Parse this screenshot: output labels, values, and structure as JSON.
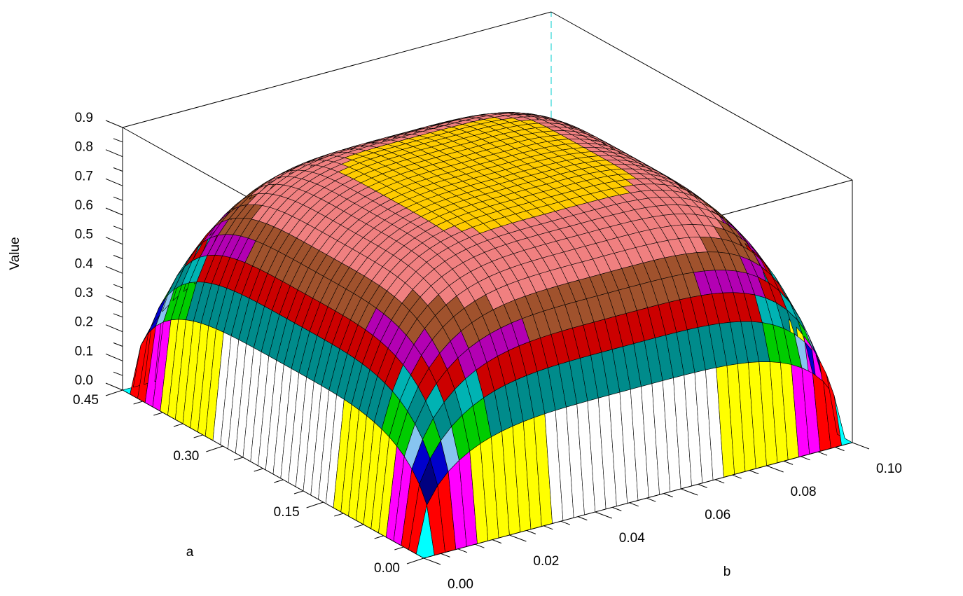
{
  "chart_data": {
    "type": "surface3d",
    "title": "",
    "xlabel": "a",
    "ylabel": "b",
    "zlabel": "Value",
    "x_ticks": [
      "0.00",
      "0.15",
      "0.30",
      "0.45"
    ],
    "y_ticks": [
      "0.00",
      "0.02",
      "0.04",
      "0.06",
      "0.08",
      "0.10"
    ],
    "z_ticks": [
      "0.0",
      "0.1",
      "0.2",
      "0.3",
      "0.4",
      "0.5",
      "0.6",
      "0.7",
      "0.8",
      "0.9"
    ],
    "xlim": [
      0.0,
      0.45
    ],
    "ylim": [
      0.0,
      0.1
    ],
    "zlim": [
      0.0,
      0.9
    ],
    "surface": {
      "description_formula": "z = 0.85 * sqrt(1 - ((a - 0.225)/0.225)^4) * sqrt(1 - ((b - 0.05)/0.05)^4)",
      "peak_value": 0.85,
      "grid_a_count": 40,
      "grid_b_count": 40
    },
    "color_bands": [
      {
        "min": 0.0,
        "max": 0.03,
        "color": "#0000ff"
      },
      {
        "min": 0.03,
        "max": 0.06,
        "color": "#00ffff"
      },
      {
        "min": 0.06,
        "max": 0.09,
        "color": "#00ff00"
      },
      {
        "min": 0.09,
        "max": 0.12,
        "color": "#ff0000"
      },
      {
        "min": 0.12,
        "max": 0.15,
        "color": "#ff00ff"
      },
      {
        "min": 0.15,
        "max": 0.18,
        "color": "#ffff00"
      },
      {
        "min": 0.18,
        "max": 0.21,
        "color": "#ffffff"
      },
      {
        "min": 0.21,
        "max": 0.26,
        "color": "#000080"
      },
      {
        "min": 0.26,
        "max": 0.3,
        "color": "#0000cc"
      },
      {
        "min": 0.3,
        "max": 0.34,
        "color": "#87c4f0"
      },
      {
        "min": 0.34,
        "max": 0.39,
        "color": "#00cc00"
      },
      {
        "min": 0.39,
        "max": 0.44,
        "color": "#008b8b"
      },
      {
        "min": 0.44,
        "max": 0.49,
        "color": "#00b3b3"
      },
      {
        "min": 0.49,
        "max": 0.55,
        "color": "#cc0000"
      },
      {
        "min": 0.55,
        "max": 0.61,
        "color": "#b300b3"
      },
      {
        "min": 0.61,
        "max": 0.7,
        "color": "#a0522d"
      },
      {
        "min": 0.7,
        "max": 0.83,
        "color": "#f08080"
      },
      {
        "min": 0.83,
        "max": 1.0,
        "color": "#ffcc00"
      }
    ],
    "floor_color": "#000000",
    "box_color": "#000000",
    "hidden_edge_color": "#00cccc"
  }
}
